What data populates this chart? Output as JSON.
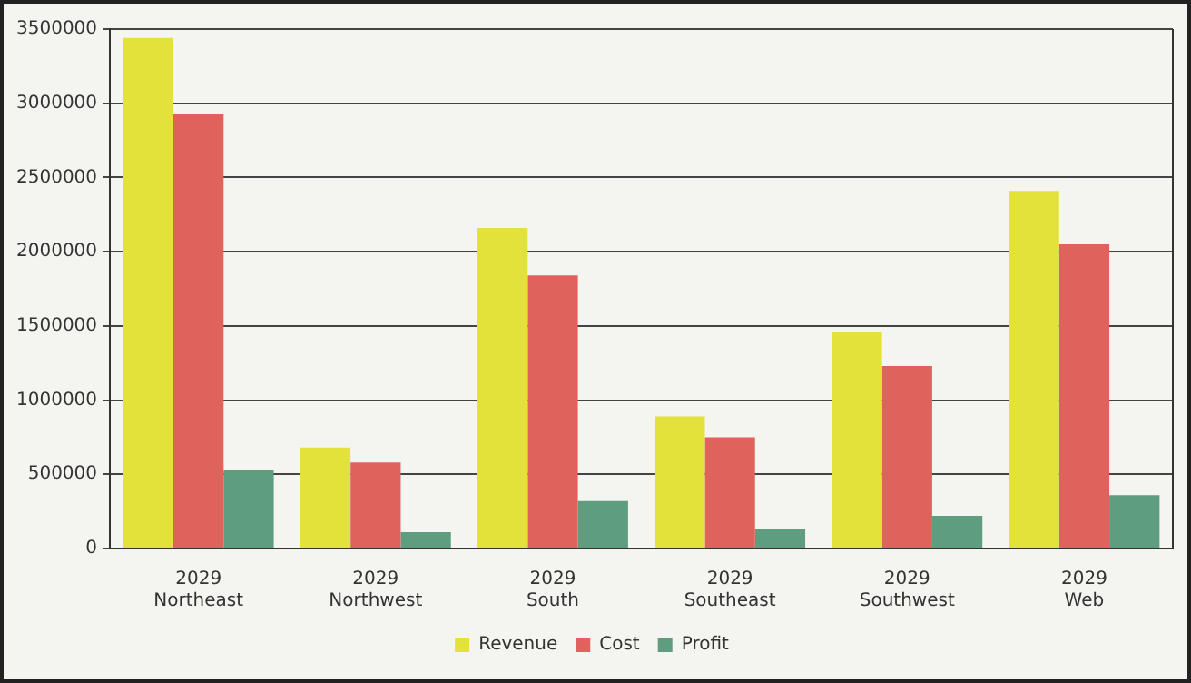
{
  "chart_data": {
    "type": "bar",
    "categories": [
      "2029\nNortheast",
      "2029\nNorthwest",
      "2029\nSouth",
      "2029\nSoutheast",
      "2029\nSouthwest",
      "2029\nWeb"
    ],
    "series": [
      {
        "name": "Revenue",
        "color": "#e2e23a",
        "values": [
          3440000,
          680000,
          2160000,
          890000,
          1460000,
          2410000
        ]
      },
      {
        "name": "Cost",
        "color": "#e0625c",
        "values": [
          2930000,
          580000,
          1840000,
          750000,
          1230000,
          2050000
        ]
      },
      {
        "name": "Profit",
        "color": "#5e9e7e",
        "values": [
          530000,
          110000,
          320000,
          135000,
          220000,
          360000
        ]
      }
    ],
    "ylim": [
      0,
      3500000
    ],
    "yticks": [
      0,
      500000,
      1000000,
      1500000,
      2000000,
      2500000,
      3000000,
      3500000
    ],
    "grid": "y",
    "legend": "bottom"
  }
}
